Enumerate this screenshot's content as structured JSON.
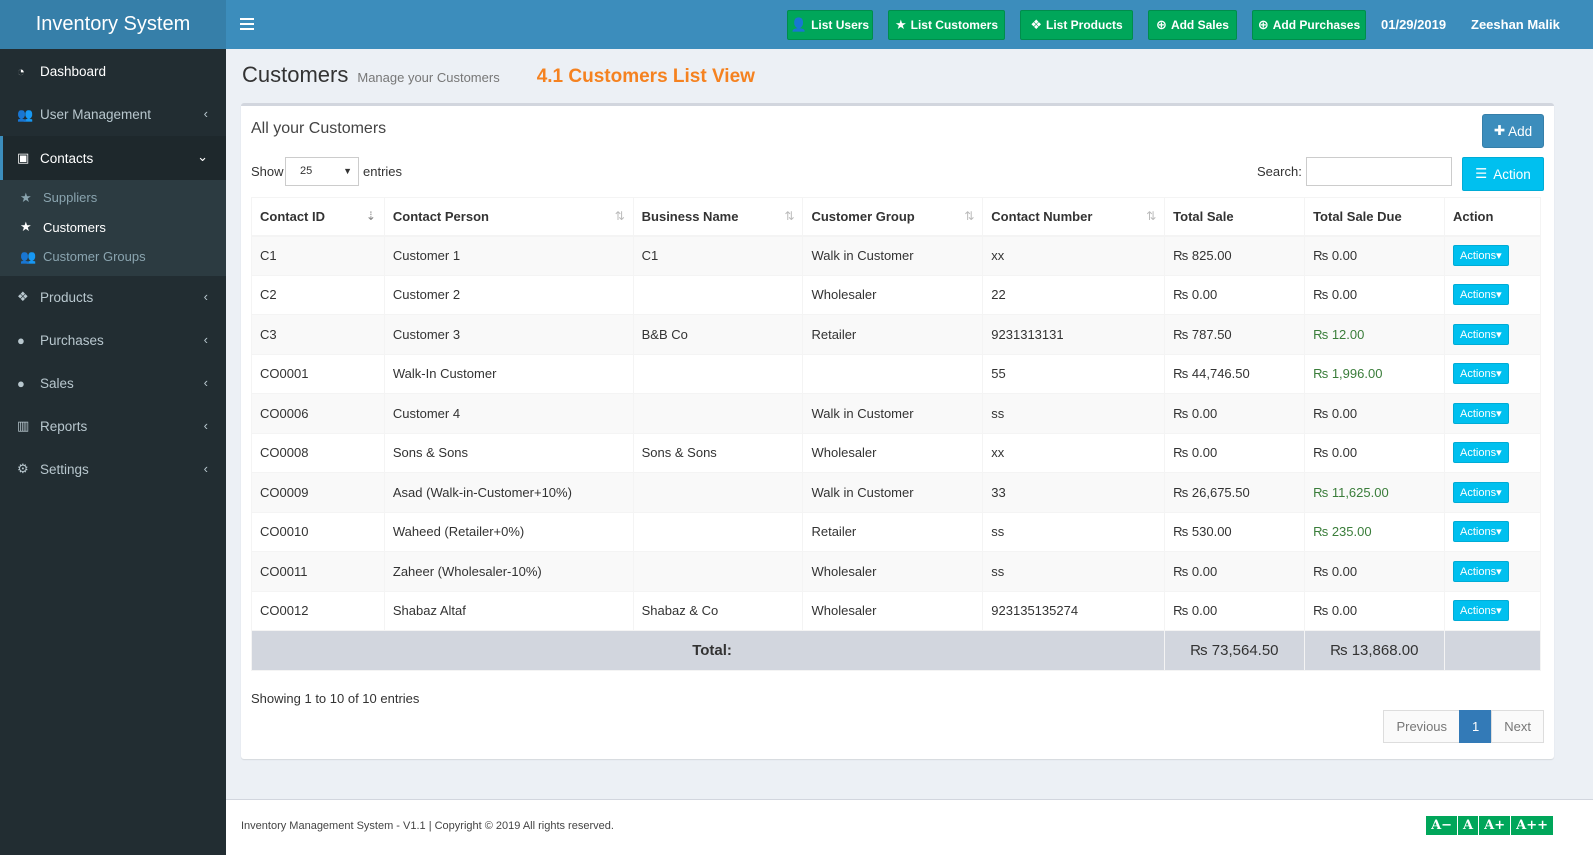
{
  "app": {
    "title": "Inventory System"
  },
  "header": {
    "quick_buttons": [
      {
        "label": "List Users",
        "icon": "user-icon"
      },
      {
        "label": "List Customers",
        "icon": "star-icon"
      },
      {
        "label": "List Products",
        "icon": "cubes-icon"
      },
      {
        "label": "Add Sales",
        "icon": "plus-circle-icon"
      },
      {
        "label": "Add Purchases",
        "icon": "plus-circle-icon"
      }
    ],
    "date": "01/29/2019",
    "user": "Zeeshan Malik"
  },
  "sidebar": {
    "items": [
      {
        "label": "Dashboard",
        "icon": "dashboard-icon"
      },
      {
        "label": "User Management",
        "icon": "users-icon"
      },
      {
        "label": "Contacts",
        "icon": "address-book-icon"
      },
      {
        "label": "Products",
        "icon": "cubes-icon"
      },
      {
        "label": "Purchases",
        "icon": "arrow-circle-down-icon"
      },
      {
        "label": "Sales",
        "icon": "arrow-circle-up-icon"
      },
      {
        "label": "Reports",
        "icon": "bar-chart-icon"
      },
      {
        "label": "Settings",
        "icon": "gear-icon"
      }
    ],
    "contacts_sub": [
      {
        "label": "Suppliers",
        "icon": "star-icon"
      },
      {
        "label": "Customers",
        "icon": "star-icon"
      },
      {
        "label": "Customer Groups",
        "icon": "users-icon"
      }
    ]
  },
  "page": {
    "title": "Customers",
    "subtitle": "Manage your Customers",
    "note": "4.1 Customers List View"
  },
  "box": {
    "title": "All your Customers",
    "add_label": "Add",
    "show_label": "Show",
    "entries_value": "25",
    "entries_label": "entries",
    "search_label": "Search:",
    "search_value": "",
    "action_label": "Action"
  },
  "table": {
    "headers": [
      "Contact ID",
      "Contact Person",
      "Business Name",
      "Customer Group",
      "Contact Number",
      "Total Sale",
      "Total Sale Due",
      "Action"
    ],
    "action_label": "Actions",
    "rows": [
      [
        "C1",
        "Customer 1",
        "C1",
        "Walk in Customer",
        "xx",
        "₨ 825.00",
        "₨ 0.00"
      ],
      [
        "C2",
        "Customer 2",
        "",
        "Wholesaler",
        "22",
        "₨ 0.00",
        "₨ 0.00"
      ],
      [
        "C3",
        "Customer 3",
        "B&B Co",
        "Retailer",
        "9231313131",
        "₨ 787.50",
        "₨ 12.00"
      ],
      [
        "CO0001",
        "Walk-In Customer",
        "",
        "",
        "55",
        "₨ 44,746.50",
        "₨ 1,996.00"
      ],
      [
        "CO0006",
        "Customer 4",
        "",
        "Walk in Customer",
        "ss",
        "₨ 0.00",
        "₨ 0.00"
      ],
      [
        "CO0008",
        "Sons & Sons",
        "Sons & Sons",
        "Wholesaler",
        "xx",
        "₨ 0.00",
        "₨ 0.00"
      ],
      [
        "CO0009",
        "Asad (Walk-in-Customer+10%)",
        "",
        "Walk in Customer",
        "33",
        "₨ 26,675.50",
        "₨ 11,625.00"
      ],
      [
        "CO0010",
        "Waheed (Retailer+0%)",
        "",
        "Retailer",
        "ss",
        "₨ 530.00",
        "₨ 235.00"
      ],
      [
        "CO0011",
        "Zaheer (Wholesaler-10%)",
        "",
        "Wholesaler",
        "ss",
        "₨ 0.00",
        "₨ 0.00"
      ],
      [
        "CO0012",
        "Shabaz Altaf",
        "Shabaz & Co",
        "Wholesaler",
        "923135135274",
        "₨ 0.00",
        "₨ 0.00"
      ]
    ],
    "due_highlight": [
      false,
      false,
      true,
      true,
      false,
      false,
      true,
      true,
      false,
      false
    ],
    "total_label": "Total:",
    "total_sale": "₨ 73,564.50",
    "total_due": "₨ 13,868.00"
  },
  "info_text": "Showing 1 to 10 of 10 entries",
  "pager": {
    "previous": "Previous",
    "current": "1",
    "next": "Next"
  },
  "footer": {
    "text": "Inventory Management System - V1.1 | Copyright © 2019 All rights reserved.",
    "font_buttons": [
      "A−",
      "A",
      "A+",
      "A++"
    ]
  },
  "colors": {
    "brand": "#367fa9",
    "topbar": "#3c8dbc",
    "sidebar": "#222d32",
    "success": "#00a65a",
    "info": "#00c0ef",
    "note": "#f58220"
  }
}
